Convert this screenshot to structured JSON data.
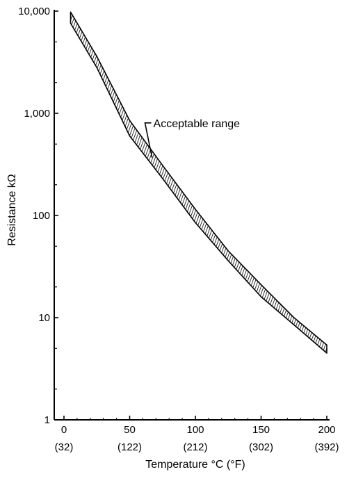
{
  "chart_data": {
    "type": "area",
    "title": "",
    "xlabel": "Temperature °C (°F)",
    "ylabel": "Resistance kΩ",
    "y_scale": "log",
    "xlim": [
      0,
      200
    ],
    "ylim": [
      1,
      10000
    ],
    "x_ticks": [
      {
        "value": 0,
        "label": "0",
        "sublabel": "(32)"
      },
      {
        "value": 50,
        "label": "50",
        "sublabel": "(122)"
      },
      {
        "value": 100,
        "label": "100",
        "sublabel": "(212)"
      },
      {
        "value": 150,
        "label": "150",
        "sublabel": "(302)"
      },
      {
        "value": 200,
        "label": "200",
        "sublabel": "(392)"
      }
    ],
    "y_ticks": [
      {
        "value": 1,
        "label": "1"
      },
      {
        "value": 10,
        "label": "10"
      },
      {
        "value": 100,
        "label": "100"
      },
      {
        "value": 1000,
        "label": "1,000"
      },
      {
        "value": 10000,
        "label": "10,000"
      }
    ],
    "grid": false,
    "series": [
      {
        "name": "Acceptable range",
        "x": [
          5,
          25,
          50,
          75,
          100,
          125,
          150,
          175,
          200
        ],
        "upper": [
          9800,
          3600,
          850,
          310,
          115,
          45,
          21,
          10,
          5.4
        ],
        "lower": [
          7600,
          2800,
          600,
          230,
          85,
          36,
          16,
          8.5,
          4.5
        ]
      }
    ],
    "annotations": [
      {
        "text": "Acceptable range",
        "x": 68,
        "y": 780,
        "target_x": 67,
        "target_y": 370
      }
    ]
  }
}
